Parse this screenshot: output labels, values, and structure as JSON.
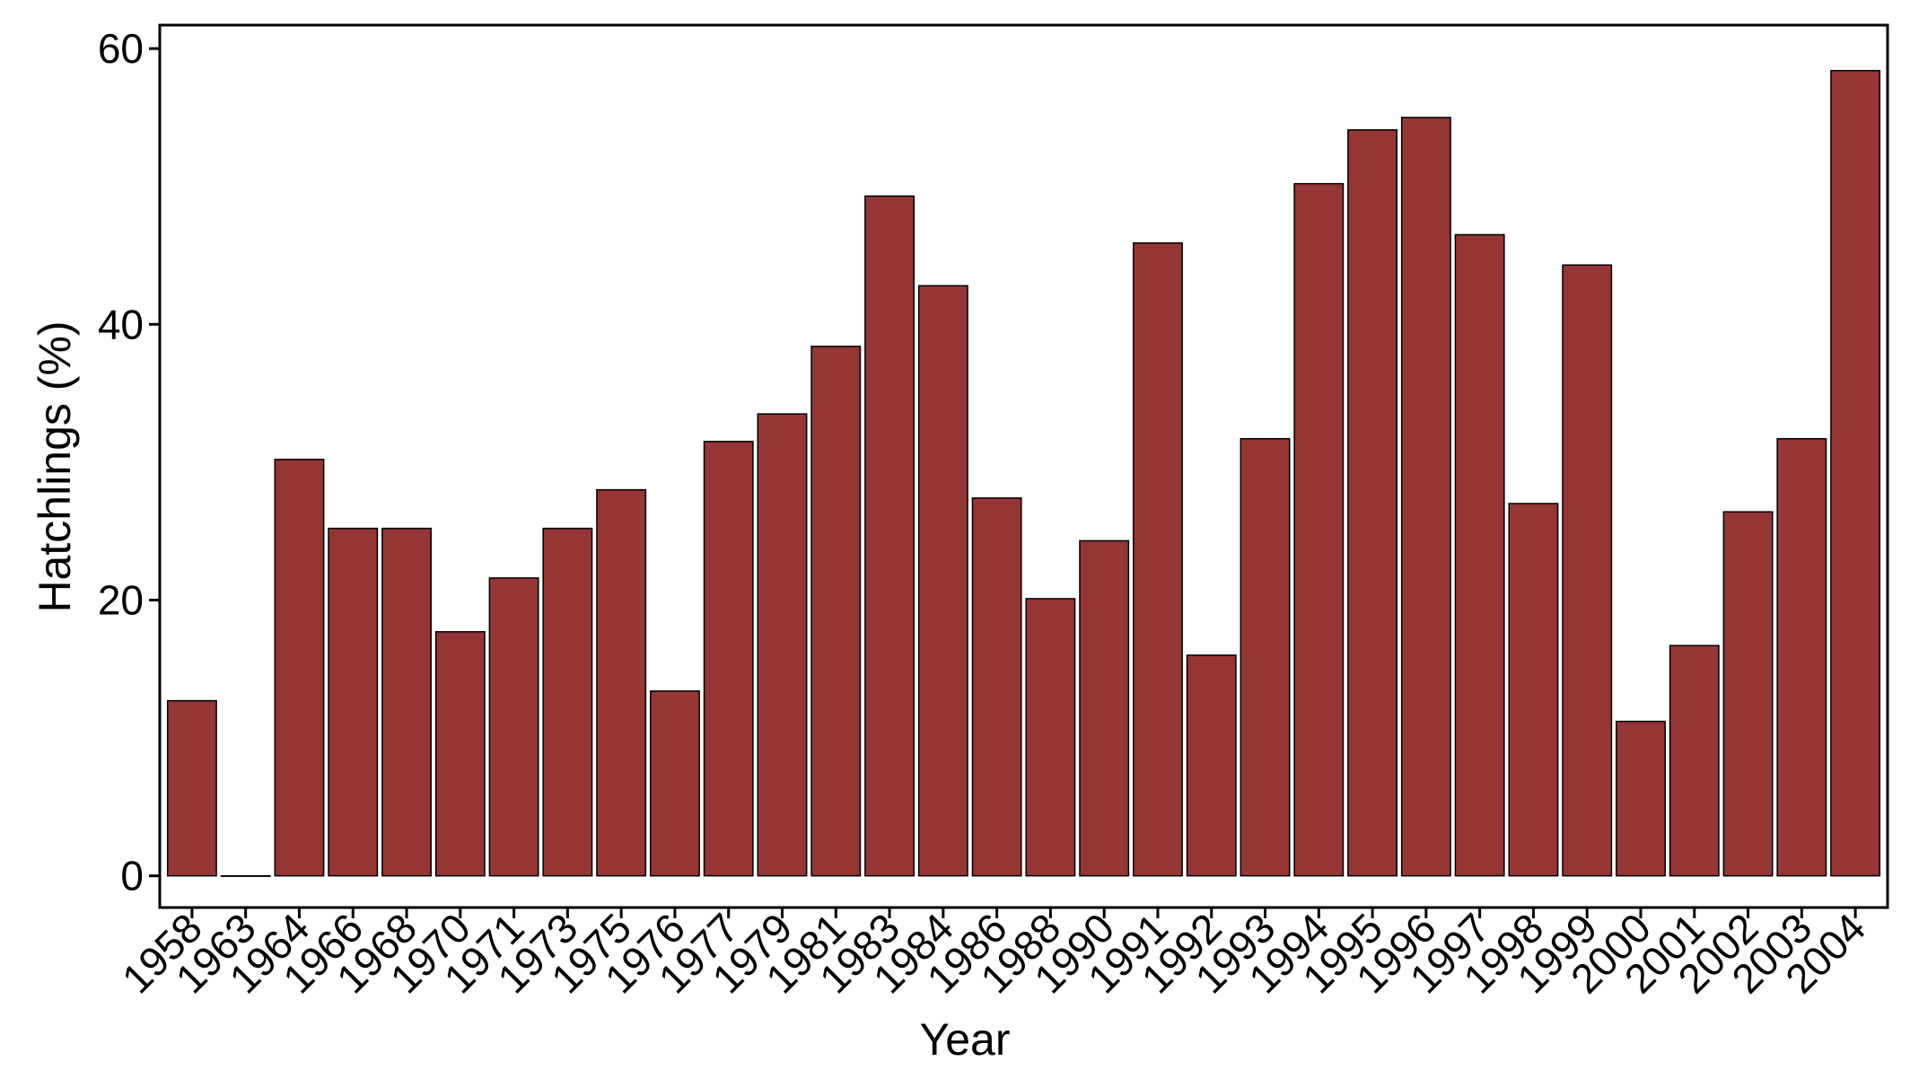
{
  "chart_data": {
    "type": "bar",
    "title": "",
    "xlabel": "Year",
    "ylabel": "Hatchlings (%)",
    "ylim": [
      -2.3,
      61.7
    ],
    "yticks": [
      0,
      20,
      40,
      60
    ],
    "grid": false,
    "legend": "none",
    "bar_color": "#943636",
    "categories": [
      "1958",
      "1963",
      "1964",
      "1966",
      "1968",
      "1970",
      "1971",
      "1973",
      "1975",
      "1976",
      "1977",
      "1979",
      "1981",
      "1983",
      "1984",
      "1986",
      "1988",
      "1990",
      "1991",
      "1992",
      "1993",
      "1994",
      "1995",
      "1996",
      "1997",
      "1998",
      "1999",
      "2000",
      "2001",
      "2002",
      "2003",
      "2004"
    ],
    "values": [
      12.7,
      0,
      30.2,
      25.2,
      25.2,
      17.7,
      21.6,
      25.2,
      28.0,
      13.4,
      31.5,
      33.5,
      38.4,
      49.3,
      42.8,
      27.4,
      20.1,
      24.3,
      45.9,
      16.0,
      31.7,
      50.2,
      54.1,
      55.0,
      46.5,
      27.0,
      44.3,
      11.2,
      16.7,
      26.4,
      31.7,
      58.4
    ]
  }
}
